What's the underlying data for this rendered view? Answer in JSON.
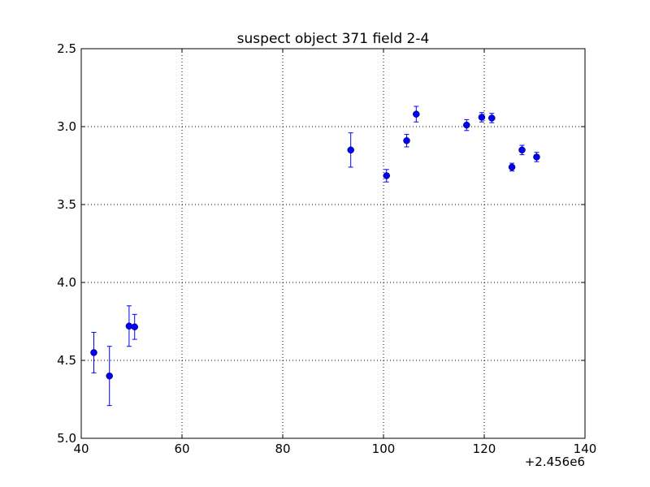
{
  "chart_data": {
    "type": "scatter",
    "title": "suspect object 371 field 2-4",
    "xlabel": "",
    "ylabel": "",
    "x_offset_label": "+2.456e6",
    "xlim": [
      40,
      140
    ],
    "ylim": [
      5.0,
      2.5
    ],
    "y_inverted": true,
    "grid": true,
    "x_ticks": [
      "40",
      "60",
      "80",
      "100",
      "120",
      "140"
    ],
    "y_ticks": [
      "2.5",
      "3.0",
      "3.5",
      "4.0",
      "4.5",
      "5.0"
    ],
    "x_tick_values": [
      40,
      60,
      80,
      100,
      120,
      140
    ],
    "y_tick_values": [
      2.5,
      3.0,
      3.5,
      4.0,
      4.5,
      5.0
    ],
    "marker_color": "#0000ff",
    "errorbar_color": "#0000ff",
    "points": [
      {
        "x": 42.5,
        "y": 4.45,
        "err": 0.13
      },
      {
        "x": 45.6,
        "y": 4.6,
        "err": 0.19
      },
      {
        "x": 49.5,
        "y": 4.28,
        "err": 0.13
      },
      {
        "x": 50.6,
        "y": 4.285,
        "err": 0.08
      },
      {
        "x": 93.5,
        "y": 3.15,
        "err": 0.11
      },
      {
        "x": 100.6,
        "y": 3.315,
        "err": 0.04
      },
      {
        "x": 104.6,
        "y": 3.09,
        "err": 0.04
      },
      {
        "x": 106.5,
        "y": 2.92,
        "err": 0.05
      },
      {
        "x": 116.5,
        "y": 2.99,
        "err": 0.035
      },
      {
        "x": 119.5,
        "y": 2.94,
        "err": 0.03
      },
      {
        "x": 121.5,
        "y": 2.945,
        "err": 0.03
      },
      {
        "x": 125.5,
        "y": 3.26,
        "err": 0.025
      },
      {
        "x": 127.5,
        "y": 3.15,
        "err": 0.03
      },
      {
        "x": 130.4,
        "y": 3.195,
        "err": 0.03
      }
    ]
  }
}
